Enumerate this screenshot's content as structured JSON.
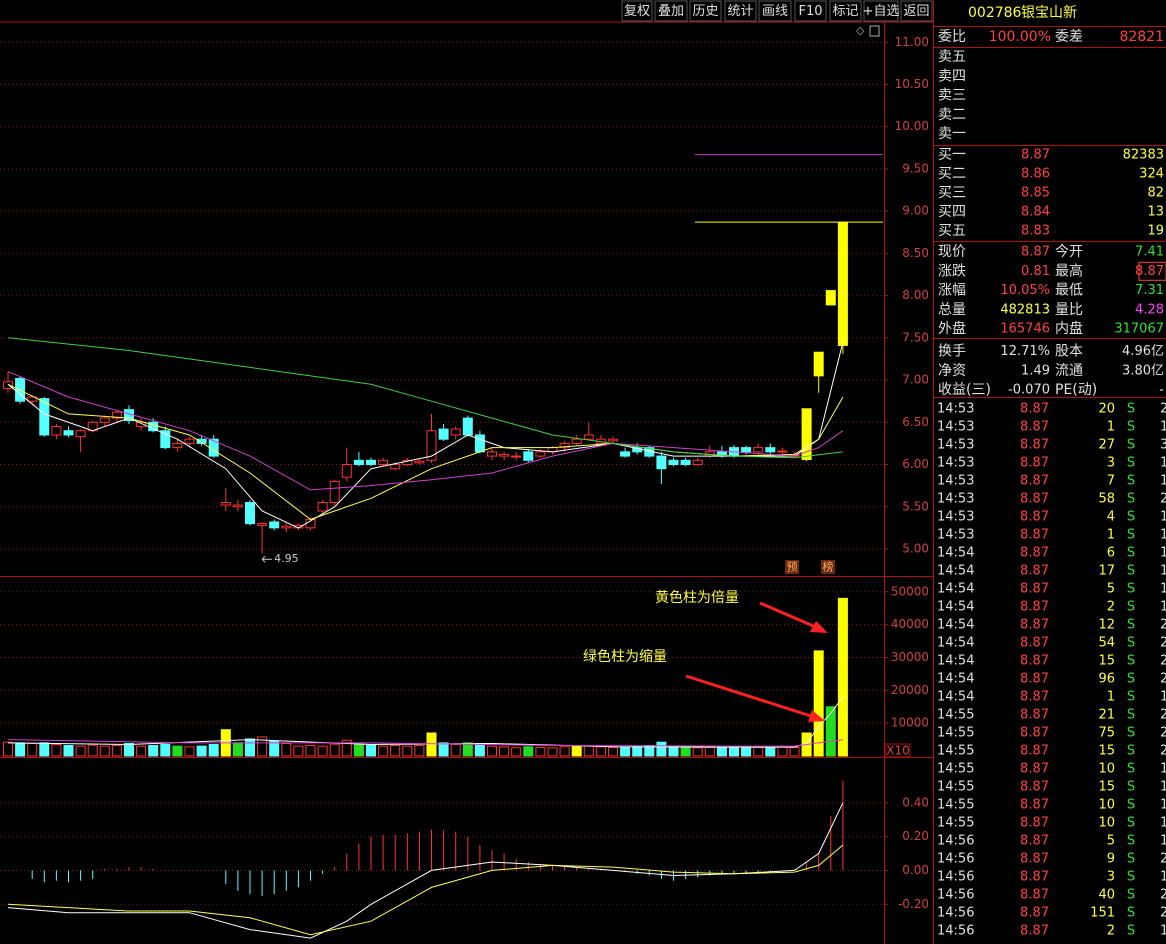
{
  "toolbar": [
    "复权",
    "叠加",
    "历史",
    "统计",
    "画线",
    "F10",
    "标记",
    "+自选",
    "返回"
  ],
  "chart_data": [
    {
      "type": "candlestick",
      "open": [
        6.9,
        7.02,
        6.75,
        6.78,
        6.35,
        6.4,
        6.33,
        6.4,
        6.5,
        6.55,
        6.65,
        6.45,
        6.5,
        6.4,
        6.2,
        6.25,
        6.3,
        6.3,
        5.52,
        5.5,
        5.55,
        5.28,
        5.32,
        5.25,
        5.25,
        5.25,
        5.45,
        5.55,
        5.85,
        6.05,
        6.05,
        6.0,
        5.95,
        6.0,
        6.02,
        6.05,
        6.42,
        6.35,
        6.55,
        6.35,
        6.1,
        6.1,
        6.1,
        6.15,
        6.1,
        6.15,
        6.2,
        6.25,
        6.3,
        6.25,
        6.28,
        6.15,
        6.2,
        6.2,
        6.1,
        6.05,
        6.05,
        6.0,
        6.1,
        6.15,
        6.2,
        6.2,
        6.15,
        6.2,
        6.15,
        6.1,
        6.06,
        7.05,
        7.89,
        7.41
      ],
      "high": [
        7.1,
        7.05,
        6.82,
        6.8,
        6.48,
        6.45,
        6.42,
        6.52,
        6.58,
        6.65,
        6.7,
        6.55,
        6.55,
        6.45,
        6.3,
        6.33,
        6.35,
        6.35,
        5.72,
        5.58,
        5.58,
        5.32,
        5.35,
        5.3,
        5.3,
        5.37,
        5.58,
        5.82,
        6.2,
        6.15,
        6.08,
        6.08,
        6.03,
        6.08,
        6.06,
        6.6,
        6.48,
        6.45,
        6.58,
        6.4,
        6.2,
        6.15,
        6.15,
        6.18,
        6.18,
        6.22,
        6.28,
        6.35,
        6.5,
        6.35,
        6.33,
        6.2,
        6.25,
        6.22,
        6.15,
        6.08,
        6.08,
        6.08,
        6.22,
        6.22,
        6.23,
        6.22,
        6.25,
        6.25,
        6.2,
        6.15,
        6.66,
        7.33,
        8.06,
        8.87
      ],
      "low": [
        6.85,
        6.72,
        6.7,
        6.33,
        6.3,
        6.32,
        6.15,
        6.38,
        6.45,
        6.5,
        6.48,
        6.4,
        6.38,
        6.18,
        6.15,
        6.2,
        6.22,
        6.08,
        5.45,
        5.45,
        5.28,
        4.95,
        5.22,
        5.2,
        5.22,
        5.22,
        5.42,
        5.52,
        5.8,
        5.98,
        5.98,
        5.98,
        5.93,
        5.98,
        6.0,
        6.02,
        6.28,
        6.3,
        6.33,
        6.13,
        6.05,
        6.05,
        6.05,
        6.02,
        6.08,
        6.12,
        6.15,
        6.22,
        6.28,
        6.22,
        6.25,
        6.08,
        6.12,
        6.08,
        5.77,
        5.98,
        5.98,
        5.98,
        6.08,
        6.08,
        6.08,
        6.12,
        6.12,
        6.12,
        6.12,
        6.08,
        6.04,
        6.85,
        7.89,
        7.31
      ],
      "close": [
        6.98,
        6.75,
        6.8,
        6.35,
        6.45,
        6.35,
        6.4,
        6.5,
        6.55,
        6.62,
        6.52,
        6.5,
        6.4,
        6.2,
        6.25,
        6.3,
        6.25,
        6.1,
        5.55,
        5.52,
        5.3,
        5.3,
        5.25,
        5.27,
        5.28,
        5.35,
        5.55,
        5.8,
        6.0,
        6.0,
        6.0,
        6.05,
        6.0,
        6.05,
        6.04,
        6.4,
        6.3,
        6.42,
        6.35,
        6.15,
        6.15,
        6.12,
        6.1,
        6.05,
        6.15,
        6.2,
        6.25,
        6.3,
        6.35,
        6.3,
        6.3,
        6.1,
        6.15,
        6.1,
        5.95,
        6.0,
        6.0,
        6.05,
        6.15,
        6.1,
        6.1,
        6.15,
        6.2,
        6.15,
        6.16,
        6.11,
        6.66,
        7.33,
        8.06,
        8.87
      ],
      "up_color": "#ff3232",
      "down_color": "#54ffff",
      "limit_up_color": "#ffff00",
      "limit_up": [
        66,
        67,
        68,
        69
      ],
      "lines": [
        {
          "color": "#ffffff",
          "x": [
            0,
            3,
            7,
            10,
            14,
            18,
            21,
            24,
            27,
            30,
            35,
            38,
            41,
            45,
            50,
            55,
            60,
            65,
            67,
            69
          ],
          "values": [
            6.95,
            6.6,
            6.4,
            6.55,
            6.3,
            5.95,
            5.45,
            5.25,
            5.5,
            5.95,
            6.1,
            6.35,
            6.2,
            6.15,
            6.25,
            6.1,
            6.1,
            6.1,
            6.3,
            7.45
          ]
        },
        {
          "color": "#ffff55",
          "x": [
            0,
            5,
            10,
            15,
            20,
            25,
            30,
            35,
            40,
            45,
            50,
            55,
            60,
            65,
            67,
            69
          ],
          "values": [
            6.95,
            6.6,
            6.55,
            6.35,
            5.9,
            5.35,
            5.6,
            5.95,
            6.2,
            6.2,
            6.25,
            6.15,
            6.1,
            6.12,
            6.3,
            6.8
          ]
        },
        {
          "color": "#d040d0",
          "x": [
            0,
            5,
            10,
            15,
            20,
            25,
            30,
            35,
            40,
            45,
            50,
            55,
            60,
            65,
            67,
            69
          ],
          "values": [
            7.1,
            6.8,
            6.6,
            6.4,
            6.1,
            5.7,
            5.75,
            5.82,
            5.9,
            6.1,
            6.25,
            6.2,
            6.15,
            6.1,
            6.2,
            6.4
          ]
        },
        {
          "color": "#40d040",
          "x": [
            0,
            10,
            20,
            30,
            35,
            40,
            45,
            50,
            55,
            60,
            65,
            69
          ],
          "values": [
            7.5,
            7.35,
            7.15,
            6.95,
            6.75,
            6.55,
            6.35,
            6.25,
            6.15,
            6.1,
            6.08,
            6.15
          ]
        }
      ],
      "hlines": [
        {
          "value": 9.67,
          "color": "#c83cc8"
        },
        {
          "value": 8.87,
          "color": "#ffff00"
        }
      ],
      "low_label": 4.95,
      "annotations": [
        "预",
        "榜"
      ],
      "ylim": [
        4.68,
        11.24
      ],
      "yticks": [
        {
          "value": 5,
          "label": "5.00"
        },
        {
          "value": 5.5,
          "label": "5.50"
        },
        {
          "value": 6,
          "label": "6.00"
        },
        {
          "value": 6.5,
          "label": "6.50"
        },
        {
          "value": 7,
          "label": "7.00"
        },
        {
          "value": 7.5,
          "label": "7.50"
        },
        {
          "value": 8,
          "label": "8.00"
        },
        {
          "value": 8.5,
          "label": "8.50"
        },
        {
          "value": 9,
          "label": "9.00"
        },
        {
          "value": 9.5,
          "label": "9.50"
        },
        {
          "value": 10,
          "label": "10.00"
        },
        {
          "value": 10.5,
          "label": "10.50"
        },
        {
          "value": 11,
          "label": "11.00"
        }
      ],
      "grid": true
    },
    {
      "type": "bar",
      "values": [
        4200,
        4000,
        3800,
        4000,
        3500,
        3200,
        3000,
        3300,
        3000,
        3200,
        3800,
        3000,
        3200,
        3500,
        3000,
        2800,
        3000,
        3500,
        8000,
        4000,
        5200,
        5800,
        4500,
        3800,
        3000,
        3200,
        3000,
        3600,
        4800,
        3500,
        3300,
        3000,
        3200,
        3000,
        3200,
        7000,
        4000,
        3500,
        4000,
        3800,
        3000,
        2800,
        2500,
        2800,
        2600,
        2500,
        2800,
        3000,
        3200,
        2800,
        2600,
        2700,
        3000,
        3200,
        4200,
        3000,
        2800,
        2500,
        2600,
        2600,
        2800,
        2700,
        2600,
        2500,
        2800,
        2600,
        7000,
        32000,
        15000,
        48000
      ],
      "double_volume": [
        18,
        35,
        47,
        66,
        67,
        69
      ],
      "double_color": "#ffff00",
      "shrink_volume": [
        14,
        19,
        29,
        38,
        43,
        56,
        68
      ],
      "shrink_color": "#22dd22",
      "lines": [
        {
          "color": "#ffffff",
          "x": [
            0,
            10,
            20,
            30,
            40,
            50,
            60,
            65,
            66,
            67,
            68,
            69
          ],
          "values": [
            4000,
            3500,
            5000,
            3500,
            3800,
            2800,
            2700,
            2700,
            3800,
            9000,
            13000,
            18000
          ]
        },
        {
          "color": "#d040d0",
          "x": [
            0,
            15,
            30,
            45,
            60,
            65,
            69
          ],
          "values": [
            5000,
            4000,
            4000,
            3200,
            3000,
            3000,
            5000
          ]
        }
      ],
      "annotations": [
        "黄色柱为倍量",
        "绿色柱为缩量"
      ],
      "scale_label": "X10",
      "ylim": [
        0,
        54500
      ],
      "yticks": [
        10000,
        20000,
        30000,
        40000,
        50000
      ],
      "grid": true
    },
    {
      "type": "macd",
      "values": [
        0,
        0,
        -0.05,
        -0.07,
        -0.06,
        -0.07,
        -0.06,
        -0.05,
        0.01,
        0.01,
        0.02,
        0.02,
        0.01,
        0,
        0,
        0,
        0,
        0,
        -0.08,
        -0.12,
        -0.14,
        -0.15,
        -0.14,
        -0.12,
        -0.1,
        -0.06,
        -0.02,
        0.02,
        0.1,
        0.16,
        0.2,
        0.21,
        0.21,
        0.22,
        0.23,
        0.24,
        0.24,
        0.23,
        0.2,
        0.15,
        0.12,
        0.1,
        0.07,
        0.05,
        0.04,
        0.03,
        0.02,
        0.02,
        0.01,
        0.01,
        0,
        -0.01,
        -0.02,
        -0.03,
        -0.05,
        -0.06,
        -0.05,
        -0.04,
        -0.03,
        -0.02,
        -0.02,
        -0.02,
        -0.01,
        -0.01,
        0,
        0.01,
        0.05,
        0.1,
        0.32,
        0.53
      ],
      "up_color": "#ff3232",
      "down_color": "#54ffff",
      "lines": [
        {
          "color": "#ffffff",
          "x": [
            0,
            5,
            10,
            15,
            20,
            25,
            28,
            30,
            35,
            40,
            45,
            50,
            55,
            60,
            65,
            67,
            69
          ],
          "values": [
            -0.22,
            -0.25,
            -0.25,
            -0.25,
            -0.35,
            -0.4,
            -0.3,
            -0.2,
            0,
            0.05,
            0.03,
            0,
            -0.03,
            -0.02,
            0,
            0.1,
            0.4
          ]
        },
        {
          "color": "#ffff55",
          "x": [
            0,
            10,
            15,
            20,
            25,
            30,
            35,
            40,
            45,
            50,
            55,
            60,
            65,
            67,
            69
          ],
          "values": [
            -0.2,
            -0.24,
            -0.24,
            -0.28,
            -0.38,
            -0.3,
            -0.1,
            0,
            0.03,
            0.02,
            -0.01,
            -0.02,
            -0.01,
            0.03,
            0.15
          ]
        }
      ],
      "ylim": [
        -0.435,
        0.665
      ],
      "yticks": [
        {
          "value": 0.4,
          "label": "0.40"
        },
        {
          "value": 0.2,
          "label": "0.20"
        },
        {
          "value": 0,
          "label": "0.00"
        },
        {
          "value": -0.2,
          "label": "-0.20"
        }
      ],
      "grid": true
    }
  ],
  "quote": {
    "code": "002786",
    "name": "银宝山新",
    "ratio": [
      "委比",
      "100.00%",
      "委差",
      "82821"
    ],
    "asks": [
      "卖五",
      "卖四",
      "卖三",
      "卖二",
      "卖一"
    ],
    "bids": [
      [
        "买一",
        "8.87",
        "82383"
      ],
      [
        "买二",
        "8.86",
        "324"
      ],
      [
        "买三",
        "8.85",
        "82"
      ],
      [
        "买四",
        "8.84",
        "13"
      ],
      [
        "买五",
        "8.83",
        "19"
      ]
    ],
    "stats": [
      [
        "现价",
        "8.87",
        "今开",
        "7.41"
      ],
      [
        "涨跌",
        "0.81",
        "最高",
        "8.87"
      ],
      [
        "涨幅",
        "10.05%",
        "最低",
        "7.31"
      ],
      [
        "总量",
        "482813",
        "量比",
        "4.28"
      ],
      [
        "外盘",
        "165746",
        "内盘",
        "317067"
      ],
      [
        "换手",
        "12.71%",
        "股本",
        "4.96亿"
      ],
      [
        "净资",
        "1.49",
        "流通",
        "3.80亿"
      ],
      [
        "收益(三)",
        "-0.070",
        "PE(动)",
        "-"
      ]
    ],
    "trades": [
      [
        "14:53",
        "8.87",
        "20",
        "S",
        "2"
      ],
      [
        "14:53",
        "8.87",
        "1",
        "S",
        "1"
      ],
      [
        "14:53",
        "8.87",
        "27",
        "S",
        "3"
      ],
      [
        "14:53",
        "8.87",
        "3",
        "S",
        "1"
      ],
      [
        "14:53",
        "8.87",
        "7",
        "S",
        "1"
      ],
      [
        "14:53",
        "8.87",
        "58",
        "S",
        "2"
      ],
      [
        "14:53",
        "8.87",
        "4",
        "S",
        "1"
      ],
      [
        "14:53",
        "8.87",
        "1",
        "S",
        "1"
      ],
      [
        "14:54",
        "8.87",
        "6",
        "S",
        "1"
      ],
      [
        "14:54",
        "8.87",
        "17",
        "S",
        "1"
      ],
      [
        "14:54",
        "8.87",
        "5",
        "S",
        "1"
      ],
      [
        "14:54",
        "8.87",
        "2",
        "S",
        "1"
      ],
      [
        "14:54",
        "8.87",
        "12",
        "S",
        "2"
      ],
      [
        "14:54",
        "8.87",
        "54",
        "S",
        "2"
      ],
      [
        "14:54",
        "8.87",
        "15",
        "S",
        "2"
      ],
      [
        "14:54",
        "8.87",
        "96",
        "S",
        "2"
      ],
      [
        "14:54",
        "8.87",
        "1",
        "S",
        "1"
      ],
      [
        "14:55",
        "8.87",
        "21",
        "S",
        "2"
      ],
      [
        "14:55",
        "8.87",
        "75",
        "S",
        "2"
      ],
      [
        "14:55",
        "8.87",
        "15",
        "S",
        "2"
      ],
      [
        "14:55",
        "8.87",
        "10",
        "S",
        "1"
      ],
      [
        "14:55",
        "8.87",
        "15",
        "S",
        "1"
      ],
      [
        "14:55",
        "8.87",
        "10",
        "S",
        "1"
      ],
      [
        "14:55",
        "8.87",
        "10",
        "S",
        "1"
      ],
      [
        "14:56",
        "8.87",
        "5",
        "S",
        "1"
      ],
      [
        "14:56",
        "8.87",
        "9",
        "S",
        "2"
      ],
      [
        "14:56",
        "8.87",
        "3",
        "S",
        "1"
      ],
      [
        "14:56",
        "8.87",
        "40",
        "S",
        "2"
      ],
      [
        "14:56",
        "8.87",
        "151",
        "S",
        "2"
      ],
      [
        "14:56",
        "8.87",
        "2",
        "S",
        "1"
      ]
    ]
  }
}
